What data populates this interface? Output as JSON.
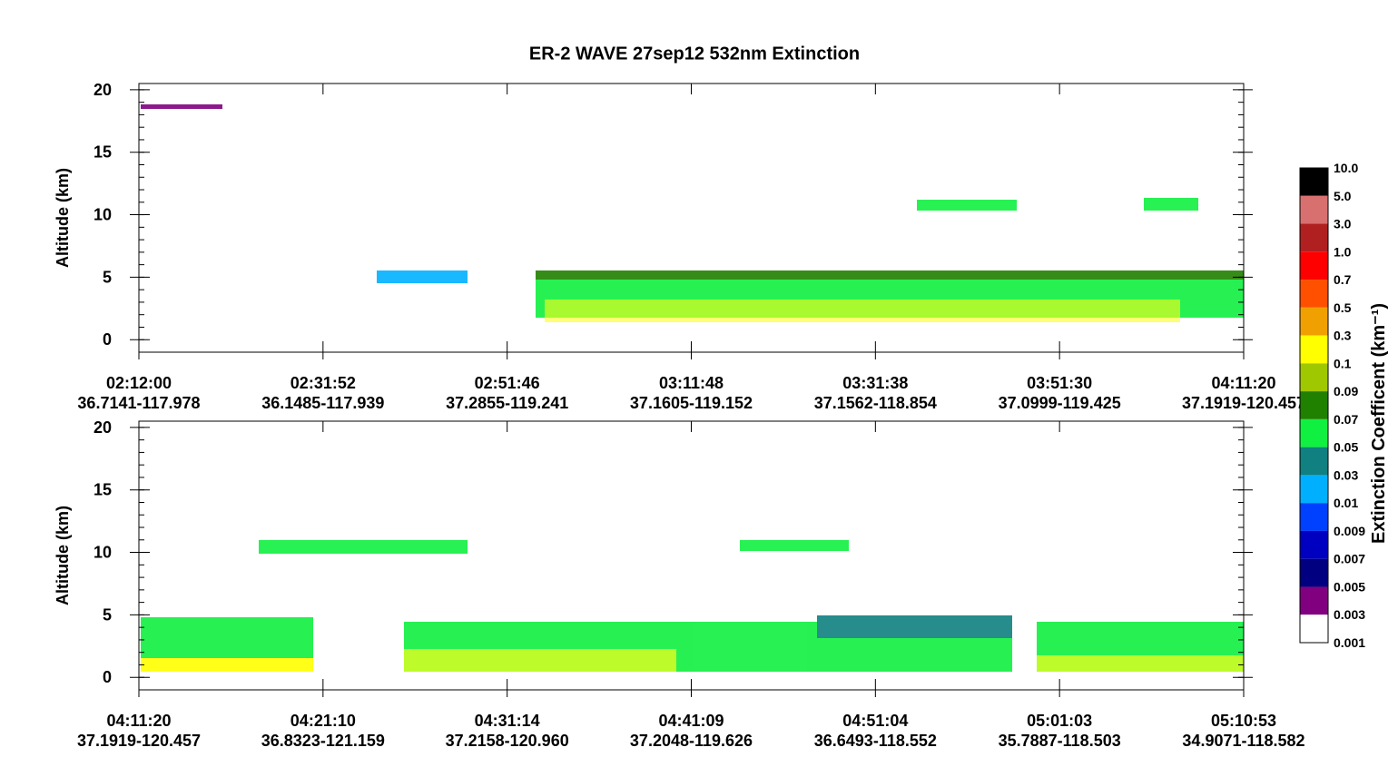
{
  "chart_data": {
    "type": "curtain",
    "title": "ER-2  WAVE  27sep12  532nm Extinction",
    "ylabel": "Altitude (km)",
    "ylim": [
      -1,
      20.5
    ],
    "yticks": [
      0,
      5,
      10,
      15,
      20
    ],
    "panels": [
      {
        "x_tick_labels": [
          [
            "02:12:00",
            "36.7141-117.978"
          ],
          [
            "02:31:52",
            "36.1485-117.939"
          ],
          [
            "02:51:46",
            "37.2855-119.241"
          ],
          [
            "03:11:48",
            "37.1605-119.152"
          ],
          [
            "03:31:38",
            "37.1562-118.854"
          ],
          [
            "03:51:30",
            "37.0999-119.425"
          ],
          [
            "04:11:20",
            "37.1919-120.457"
          ]
        ]
      },
      {
        "x_tick_labels": [
          [
            "04:11:20",
            "37.1919-120.457"
          ],
          [
            "04:21:10",
            "36.8323-121.159"
          ],
          [
            "04:31:14",
            "37.2158-120.960"
          ],
          [
            "04:41:09",
            "37.2048-119.626"
          ],
          [
            "04:51:04",
            "36.6493-118.552"
          ],
          [
            "05:01:03",
            "35.7887-118.503"
          ],
          [
            "05:10:53",
            "34.9071-118.582"
          ]
        ]
      }
    ],
    "colorbar": {
      "label": "Extinction Coefficent (km⁻¹)",
      "levels": [
        "10.0",
        "5.0",
        "3.0",
        "1.0",
        "0.7",
        "0.5",
        "0.3",
        "0.1",
        "0.09",
        "0.07",
        "0.05",
        "0.03",
        "0.01",
        "0.009",
        "0.007",
        "0.005",
        "0.003",
        "0.001"
      ],
      "colors": [
        "#000000",
        "#d87070",
        "#b02020",
        "#ff0000",
        "#ff5000",
        "#f0a000",
        "#ffff00",
        "#a0c800",
        "#208000",
        "#10f040",
        "#108080",
        "#00b0ff",
        "#0040ff",
        "#0000c0",
        "#000080",
        "#800080",
        "#ffffff"
      ]
    }
  }
}
